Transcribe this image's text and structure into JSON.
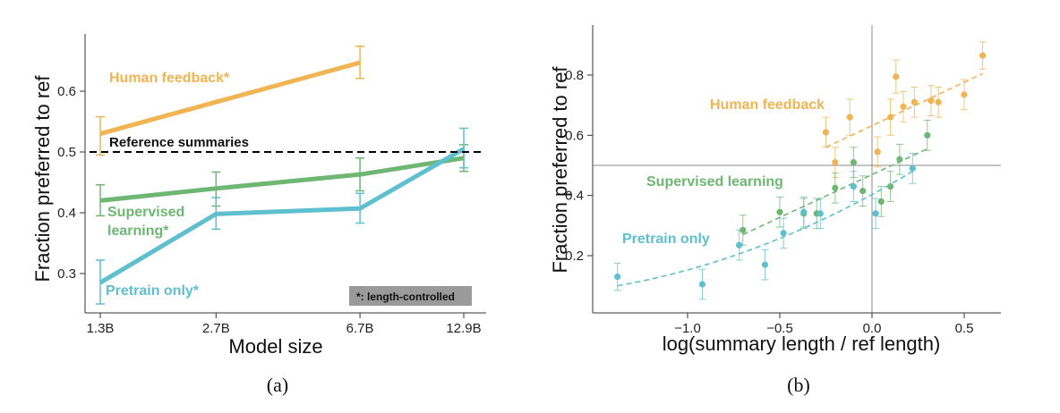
{
  "colors": {
    "human_feedback": "#F0B452",
    "supervised_learning": "#6DB773",
    "pretrain_only": "#5EBFCE",
    "reference": "#000000",
    "axis": "#333333",
    "note_box": "#9a9a9a",
    "crosshair": "#888888"
  },
  "chart_data": [
    {
      "type": "line",
      "caption": "(a)",
      "xlabel": "Model size",
      "ylabel": "Fraction preferred to ref",
      "x_scale": "log",
      "categories": [
        "1.3B",
        "2.7B",
        "6.7B",
        "12.9B"
      ],
      "x_values": [
        1.3,
        2.7,
        6.7,
        12.9
      ],
      "yticks": [
        "0.3",
        "0.4",
        "0.5",
        "0.6"
      ],
      "ylim": [
        0.25,
        0.7
      ],
      "reference": {
        "label": "Reference summaries",
        "value": 0.5
      },
      "note": "*: length-controlled",
      "series": [
        {
          "name": "Human feedback*",
          "color_key": "human_feedback",
          "x": [
            1.3,
            6.7
          ],
          "y": [
            0.53,
            0.647
          ],
          "err_low": [
            0.495,
            0.621
          ],
          "err_high": [
            0.558,
            0.674
          ]
        },
        {
          "name": "Supervised learning*",
          "label_lines": [
            "Supervised",
            "learning*"
          ],
          "color_key": "supervised_learning",
          "x": [
            1.3,
            2.7,
            6.7,
            12.9
          ],
          "y": [
            0.42,
            0.44,
            0.463,
            0.49
          ],
          "err_low": [
            0.395,
            0.411,
            0.436,
            0.468
          ],
          "err_high": [
            0.446,
            0.467,
            0.49,
            0.512
          ]
        },
        {
          "name": "Pretrain only*",
          "color_key": "pretrain_only",
          "x": [
            1.3,
            2.7,
            6.7,
            12.9
          ],
          "y": [
            0.285,
            0.398,
            0.407,
            0.505
          ],
          "err_low": [
            0.25,
            0.373,
            0.383,
            0.474
          ],
          "err_high": [
            0.322,
            0.425,
            0.432,
            0.539
          ]
        }
      ]
    },
    {
      "type": "scatter",
      "caption": "(b)",
      "xlabel": "log(summary length / ref length)",
      "ylabel": "Fraction preferred to ref",
      "xticks": [
        "−1.0",
        "−0.5",
        "0.0",
        "0.5"
      ],
      "xtick_values": [
        -1.0,
        -0.5,
        0.0,
        0.5
      ],
      "yticks": [
        "0.2",
        "0.4",
        "0.6",
        "0.8"
      ],
      "ytick_values": [
        0.2,
        0.4,
        0.6,
        0.8
      ],
      "xlim": [
        -1.5,
        0.7
      ],
      "ylim": [
        0.0,
        0.95
      ],
      "crosshair": {
        "x": 0.0,
        "y": 0.5
      },
      "series": [
        {
          "name": "Human feedback",
          "color_key": "human_feedback",
          "points": [
            [
              -0.25,
              0.61
            ],
            [
              -0.2,
              0.51
            ],
            [
              -0.12,
              0.66
            ],
            [
              0.03,
              0.545
            ],
            [
              0.1,
              0.66
            ],
            [
              0.13,
              0.795
            ],
            [
              0.17,
              0.695
            ],
            [
              0.23,
              0.71
            ],
            [
              0.32,
              0.715
            ],
            [
              0.36,
              0.71
            ],
            [
              0.5,
              0.735
            ],
            [
              0.6,
              0.865
            ]
          ],
          "err": [
            0.05,
            0.05,
            0.06,
            0.05,
            0.06,
            0.055,
            0.05,
            0.05,
            0.05,
            0.05,
            0.05,
            0.045
          ],
          "fit": {
            "x": [
              -0.25,
              0.6
            ],
            "y_start": 0.56,
            "y_end": 0.805,
            "curve": 0.0
          }
        },
        {
          "name": "Supervised learning",
          "color_key": "supervised_learning",
          "points": [
            [
              -0.7,
              0.285
            ],
            [
              -0.5,
              0.345
            ],
            [
              -0.37,
              0.34
            ],
            [
              -0.2,
              0.425
            ],
            [
              -0.1,
              0.51
            ],
            [
              -0.05,
              0.415
            ],
            [
              0.05,
              0.38
            ],
            [
              0.1,
              0.43
            ],
            [
              0.15,
              0.52
            ],
            [
              0.3,
              0.6
            ],
            [
              -0.3,
              0.34
            ]
          ],
          "err": [
            0.05,
            0.05,
            0.05,
            0.05,
            0.05,
            0.05,
            0.05,
            0.05,
            0.05,
            0.05,
            0.05
          ],
          "fit": {
            "x": [
              -0.7,
              0.3
            ],
            "y_start": 0.27,
            "y_end": 0.555,
            "curve": 0.0
          }
        },
        {
          "name": "Pretrain only",
          "color_key": "pretrain_only",
          "points": [
            [
              -1.38,
              0.13
            ],
            [
              -0.92,
              0.105
            ],
            [
              -0.72,
              0.235
            ],
            [
              -0.58,
              0.17
            ],
            [
              -0.48,
              0.275
            ],
            [
              -0.37,
              0.345
            ],
            [
              -0.28,
              0.34
            ],
            [
              -0.1,
              0.43
            ],
            [
              0.02,
              0.34
            ],
            [
              0.22,
              0.49
            ]
          ],
          "err": [
            0.045,
            0.05,
            0.05,
            0.05,
            0.05,
            0.05,
            0.05,
            0.05,
            0.05,
            0.05
          ],
          "fit": {
            "x": [
              -1.38,
              0.22
            ],
            "y_start": 0.1,
            "y_end": 0.48,
            "curve": 1.0
          }
        }
      ]
    }
  ]
}
